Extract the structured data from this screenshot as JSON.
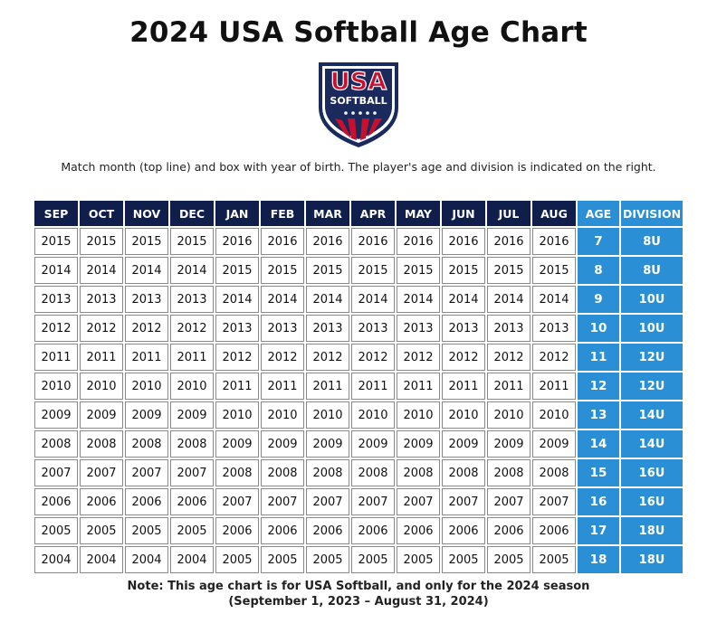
{
  "title": "2024 USA Softball Age Chart",
  "logo": {
    "line1": "USA",
    "line2": "SOFTBALL",
    "colors": {
      "navy": "#1a2a5c",
      "red": "#c8102e",
      "white": "#ffffff"
    }
  },
  "instructions": "Match month (top line) and box with year of birth. The player's age and division is indicated on the right.",
  "table": {
    "months": [
      "SEP",
      "OCT",
      "NOV",
      "DEC",
      "JAN",
      "FEB",
      "MAR",
      "APR",
      "MAY",
      "JUN",
      "JUL",
      "AUG"
    ],
    "age_header": "AGE",
    "division_header": "DIVISION",
    "rows": [
      {
        "years": [
          "2015",
          "2015",
          "2015",
          "2015",
          "2016",
          "2016",
          "2016",
          "2016",
          "2016",
          "2016",
          "2016",
          "2016"
        ],
        "age": "7",
        "division": "8U"
      },
      {
        "years": [
          "2014",
          "2014",
          "2014",
          "2014",
          "2015",
          "2015",
          "2015",
          "2015",
          "2015",
          "2015",
          "2015",
          "2015"
        ],
        "age": "8",
        "division": "8U"
      },
      {
        "years": [
          "2013",
          "2013",
          "2013",
          "2013",
          "2014",
          "2014",
          "2014",
          "2014",
          "2014",
          "2014",
          "2014",
          "2014"
        ],
        "age": "9",
        "division": "10U"
      },
      {
        "years": [
          "2012",
          "2012",
          "2012",
          "2012",
          "2013",
          "2013",
          "2013",
          "2013",
          "2013",
          "2013",
          "2013",
          "2013"
        ],
        "age": "10",
        "division": "10U"
      },
      {
        "years": [
          "2011",
          "2011",
          "2011",
          "2011",
          "2012",
          "2012",
          "2012",
          "2012",
          "2012",
          "2012",
          "2012",
          "2012"
        ],
        "age": "11",
        "division": "12U"
      },
      {
        "years": [
          "2010",
          "2010",
          "2010",
          "2010",
          "2011",
          "2011",
          "2011",
          "2011",
          "2011",
          "2011",
          "2011",
          "2011"
        ],
        "age": "12",
        "division": "12U"
      },
      {
        "years": [
          "2009",
          "2009",
          "2009",
          "2009",
          "2010",
          "2010",
          "2010",
          "2010",
          "2010",
          "2010",
          "2010",
          "2010"
        ],
        "age": "13",
        "division": "14U"
      },
      {
        "years": [
          "2008",
          "2008",
          "2008",
          "2008",
          "2009",
          "2009",
          "2009",
          "2009",
          "2009",
          "2009",
          "2009",
          "2009"
        ],
        "age": "14",
        "division": "14U"
      },
      {
        "years": [
          "2007",
          "2007",
          "2007",
          "2007",
          "2008",
          "2008",
          "2008",
          "2008",
          "2008",
          "2008",
          "2008",
          "2008"
        ],
        "age": "15",
        "division": "16U"
      },
      {
        "years": [
          "2006",
          "2006",
          "2006",
          "2006",
          "2007",
          "2007",
          "2007",
          "2007",
          "2007",
          "2007",
          "2007",
          "2007"
        ],
        "age": "16",
        "division": "16U"
      },
      {
        "years": [
          "2005",
          "2005",
          "2005",
          "2005",
          "2006",
          "2006",
          "2006",
          "2006",
          "2006",
          "2006",
          "2006",
          "2006"
        ],
        "age": "17",
        "division": "18U"
      },
      {
        "years": [
          "2004",
          "2004",
          "2004",
          "2004",
          "2005",
          "2005",
          "2005",
          "2005",
          "2005",
          "2005",
          "2005",
          "2005"
        ],
        "age": "18",
        "division": "18U"
      }
    ]
  },
  "note": {
    "line1": "Note: This age chart is for USA Softball, and only for the 2024 season",
    "line2": "(September 1, 2023 – August 31, 2024)"
  }
}
